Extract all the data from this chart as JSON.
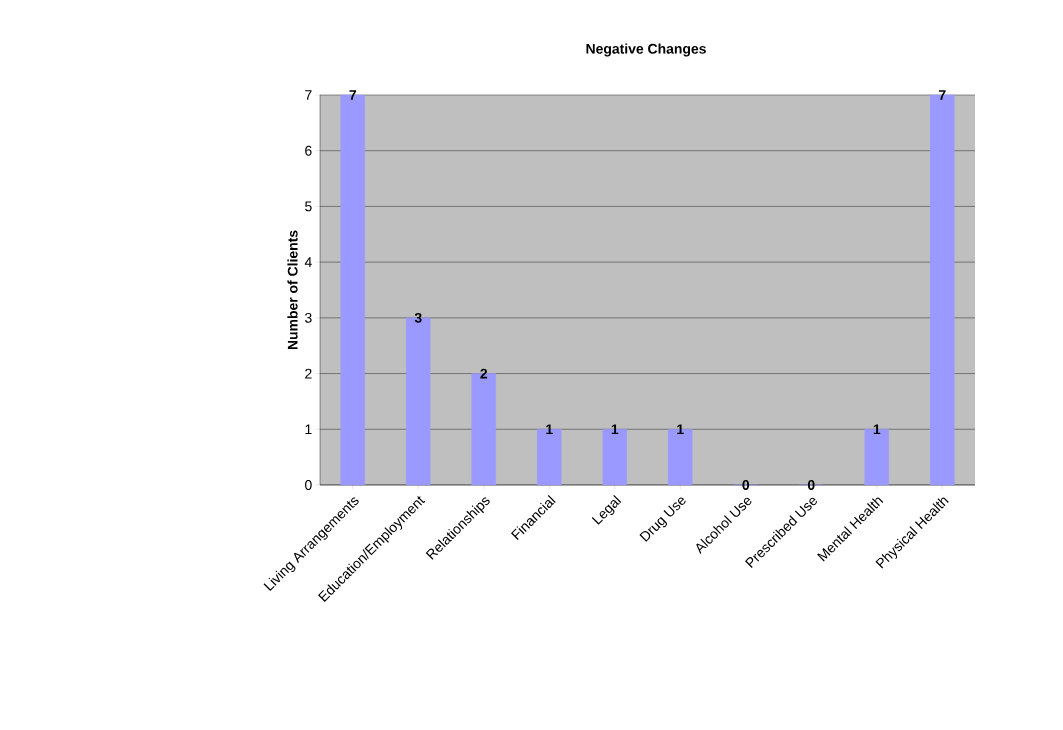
{
  "chart_data": {
    "type": "bar",
    "title": "Negative Changes",
    "ylabel": "Number of Clients",
    "categories": [
      "Living Arrangements",
      "Education/Employment",
      "Relationships",
      "Financial",
      "Legal",
      "Drug Use",
      "Alcohol Use",
      "Prescribed Use",
      "Mental Health",
      "Physical Health"
    ],
    "values": [
      7,
      3,
      2,
      1,
      1,
      1,
      0,
      0,
      1,
      7
    ],
    "color": "#9999ff",
    "ylim": [
      0,
      7
    ],
    "yticks": [
      0,
      1,
      2,
      3,
      4,
      5,
      6,
      7
    ],
    "grid": "y",
    "data_labels": true
  }
}
